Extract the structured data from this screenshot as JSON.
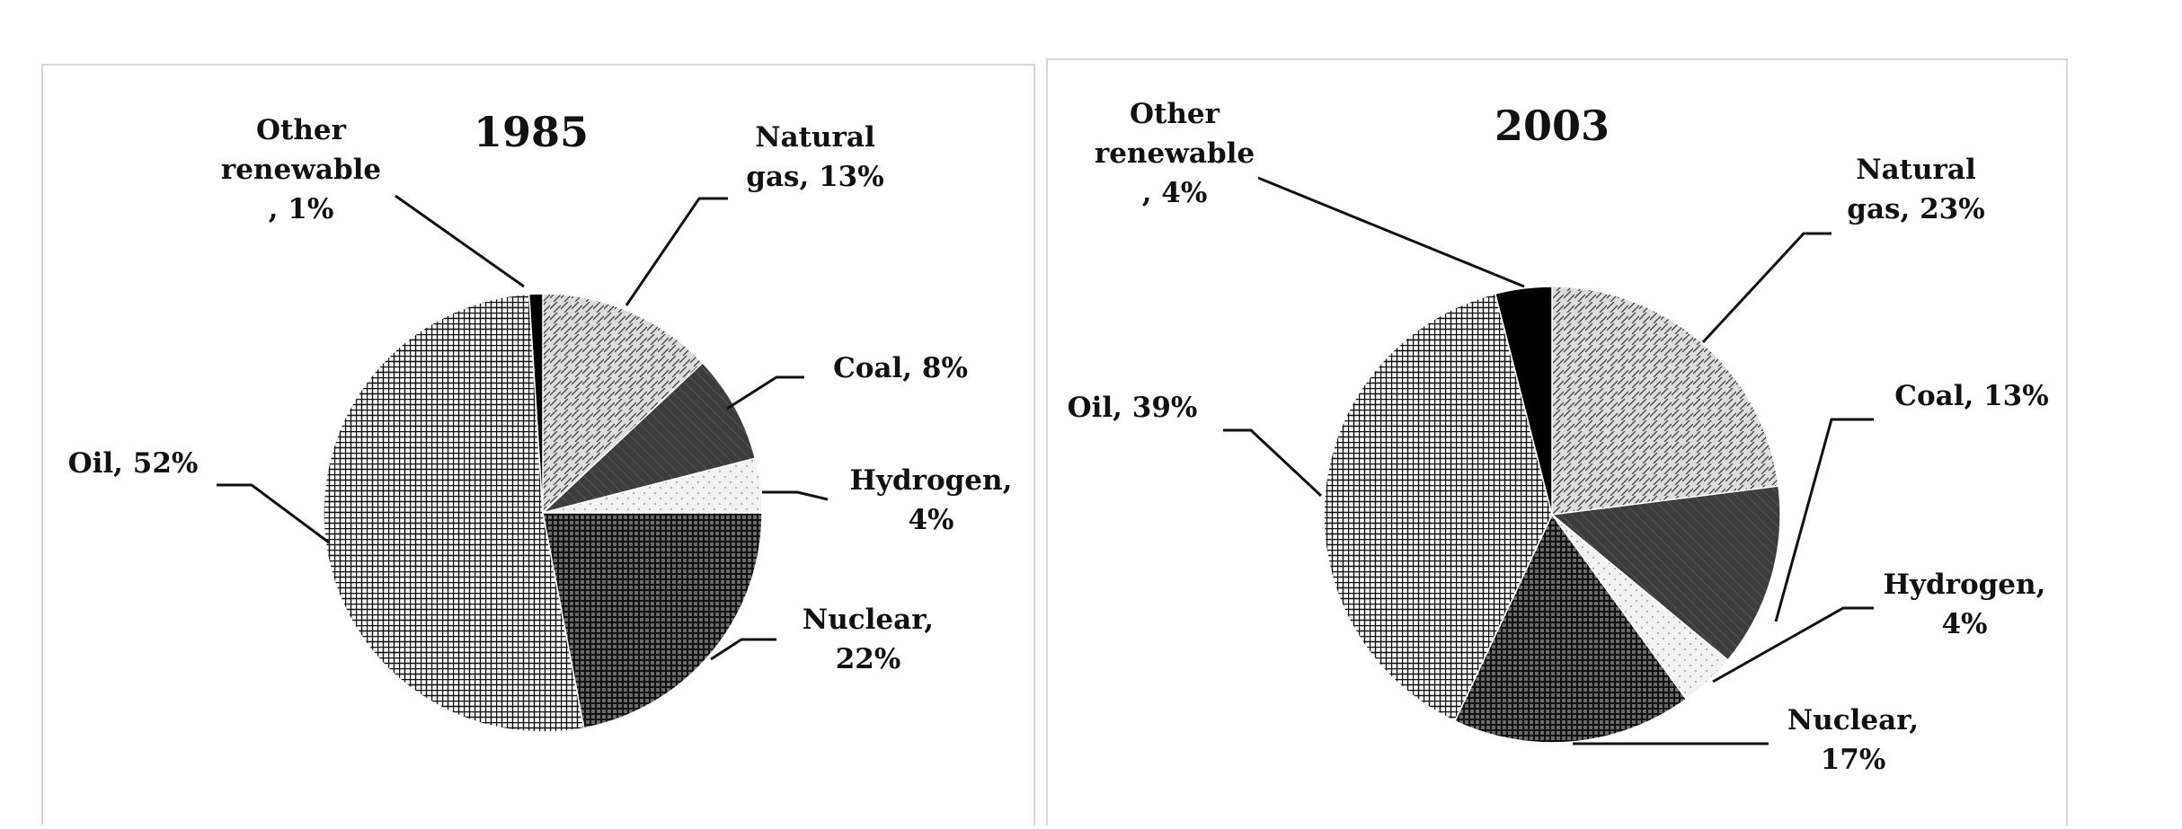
{
  "chart_data": [
    {
      "type": "pie",
      "title": "1985",
      "values": [
        13,
        8,
        4,
        22,
        52,
        1
      ],
      "value_labels": [
        "Natural\ngas, 13%",
        "Coal, 8%",
        "Hydrogen,\n4%",
        "Nuclear,\n22%",
        "Oil, 52%",
        "Other\nrenewable\n, 1%"
      ],
      "colors": [
        "#dcdcdc",
        "#3c3c3c",
        "#f2f2f2",
        "#6a6a6a",
        "#f8f8f8",
        "#000000"
      ]
    },
    {
      "type": "pie",
      "title": "2003",
      "values": [
        23,
        13,
        4,
        17,
        39,
        4
      ],
      "value_labels": [
        "Natural\ngas, 23%",
        "Coal, 13%",
        "Hydrogen,\n4%",
        "Nuclear,\n17%",
        "Oil, 39%",
        "Other\nrenewable\n, 4%"
      ],
      "colors": [
        "#dcdcdc",
        "#3c3c3c",
        "#f2f2f2",
        "#6a6a6a",
        "#f8f8f8",
        "#000000"
      ]
    }
  ]
}
